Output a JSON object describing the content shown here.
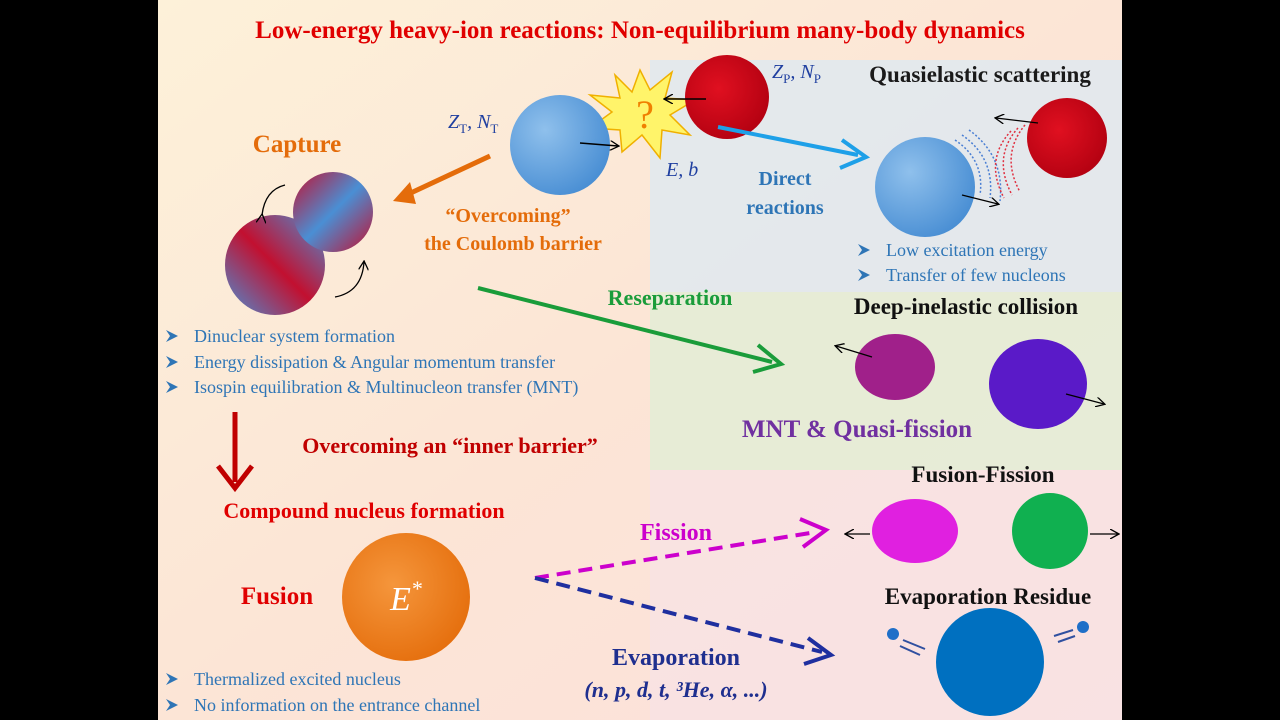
{
  "title": "Low-energy heavy-ion reactions:  Non-equilibrium many-body dynamics",
  "target_label": {
    "z": "Z",
    "z_sub": "T",
    "sep": ", ",
    "n": "N",
    "n_sub": "T"
  },
  "projectile_label": {
    "z": "Z",
    "z_sub": "P",
    "sep": ", ",
    "n": "N",
    "n_sub": "P"
  },
  "collision_params": "E, b",
  "unknown": "?",
  "capture": {
    "title": "Capture",
    "arrow_label": [
      "“Overcoming”",
      "the Coulomb barrier"
    ],
    "bullets": [
      "Dinuclear system formation",
      "Energy dissipation & Angular momentum transfer",
      "Isospin equilibration & Multinucleon transfer (MNT)"
    ]
  },
  "quasielastic": {
    "title": "Quasielastic scattering",
    "arrow_label": [
      "Direct",
      "reactions"
    ],
    "bullets": [
      "Low excitation energy",
      "Transfer of few nucleons"
    ]
  },
  "deep_inelastic": {
    "title": "Deep-inelastic collision",
    "arrow_label": "Reseparation",
    "subtitle": "MNT & Quasi-fission"
  },
  "inner_barrier": "Overcoming an “inner barrier”",
  "compound": {
    "title": "Compound nucleus formation",
    "label": "Fusion",
    "symbol": "E",
    "symbol_sup": "*",
    "bullets": [
      "Thermalized excited nucleus",
      "No information on the entrance channel"
    ]
  },
  "fusion_fission": {
    "title": "Fusion-Fission",
    "arrow_label": "Fission"
  },
  "evaporation": {
    "title": "Evaporation Residue",
    "arrow_label": "Evaporation",
    "particles": "(n, p, d, t, ³He, α, ...)"
  }
}
